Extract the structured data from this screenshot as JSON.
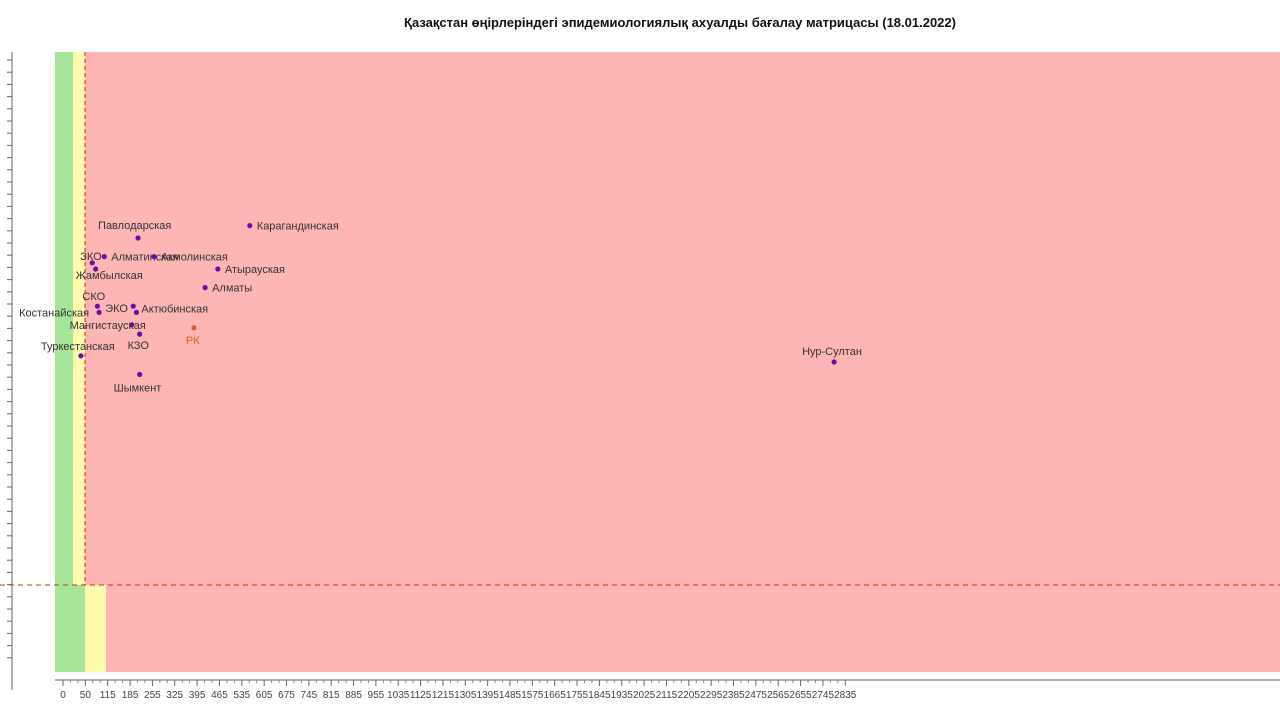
{
  "chart_data": {
    "type": "scatter",
    "title": "Қазақстан өңірлеріндегі эпидемиологиялық ахуалды бағалау матрицасы  (18.01.2022)",
    "xlabel": "",
    "ylabel": "",
    "xlim": [
      0,
      2850
    ],
    "x_ticks": [
      0,
      50,
      115,
      185,
      255,
      325,
      395,
      465,
      535,
      605,
      675,
      745,
      815,
      885,
      955,
      1035,
      1125,
      1215,
      1305,
      1395,
      1485,
      1575,
      1665,
      1755,
      1845,
      1935,
      2025,
      2115,
      2205,
      2295,
      2385,
      2475,
      2565,
      2655,
      2745,
      2835
    ],
    "zones": [
      {
        "name": "green",
        "color": "#a6e59a"
      },
      {
        "name": "yellow",
        "color": "#fdfcae"
      },
      {
        "name": "red",
        "color": "#fdb6b3"
      }
    ],
    "series": [
      {
        "points": [
          {
            "label": "Павлодарская",
            "x": 210,
            "y": 0.7
          },
          {
            "label": "Карагандинская",
            "x": 560,
            "y": 0.72
          },
          {
            "label": "ЗКО",
            "x": 70,
            "y": 0.66
          },
          {
            "label": "Алматинская",
            "x": 105,
            "y": 0.67
          },
          {
            "label": "Акмолинская",
            "x": 260,
            "y": 0.67
          },
          {
            "label": "Жамбылская",
            "x": 80,
            "y": 0.65
          },
          {
            "label": "Атырауская",
            "x": 460,
            "y": 0.65
          },
          {
            "label": "Алматы",
            "x": 420,
            "y": 0.62
          },
          {
            "label": "СКО",
            "x": 85,
            "y": 0.59
          },
          {
            "label": "ЭКО",
            "x": 195,
            "y": 0.59
          },
          {
            "label": "Актюбинская",
            "x": 205,
            "y": 0.58
          },
          {
            "label": "Костанайская",
            "x": 90,
            "y": 0.58
          },
          {
            "label": "Мангистауская",
            "x": 190,
            "y": 0.56
          },
          {
            "label": "РК",
            "x": 385,
            "y": 0.555
          },
          {
            "label": "Туркестанская",
            "x": 40,
            "y": 0.51
          },
          {
            "label": "КЗО",
            "x": 215,
            "y": 0.545
          },
          {
            "label": "Шымкент",
            "x": 215,
            "y": 0.48
          },
          {
            "label": "Нур-Султан",
            "x": 2790,
            "y": 0.5
          }
        ]
      }
    ],
    "colors": {
      "point": "#6a0dad",
      "rk_point": "#e8563a",
      "threshold_line": "#cc3300"
    }
  }
}
